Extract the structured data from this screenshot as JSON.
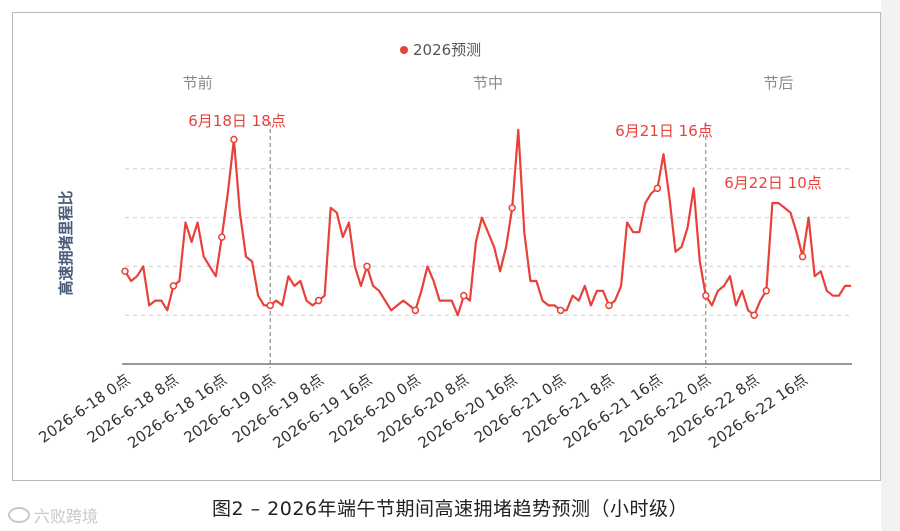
{
  "caption": "图2 – 2026年端午节期间高速拥堵趋势预测（小时级）",
  "watermark": {
    "text": "六败跨境",
    "icon": "logo-icon"
  },
  "colors": {
    "line": "#e8413a",
    "grid": "#cfcfcf",
    "divider": "#7a7a7a",
    "axis": "#333333",
    "section_label": "#8a8a8a",
    "annotation": "#e8413a",
    "ylabel": "#4a5a78"
  },
  "chart_data": {
    "type": "line",
    "title": "",
    "xlabel": "",
    "ylabel": "高速拥堵里程比",
    "legend": {
      "position": "top-center",
      "entries": [
        "2026预测"
      ]
    },
    "grid": {
      "horizontal": true,
      "style": "dashed"
    },
    "ylim": [
      0,
      5
    ],
    "sections": [
      "节前",
      "节中",
      "节后"
    ],
    "dividers_at": [
      "2026-6-19 0点",
      "2026-6-22 0点"
    ],
    "annotations": [
      {
        "label": "6月18日 18点",
        "x": "2026-6-18 18点"
      },
      {
        "label": "6月21日 16点",
        "x": "2026-6-21 16点"
      },
      {
        "label": "6月22日 10点",
        "x": "2026-6-22 10点"
      }
    ],
    "tick_labels": [
      "2026-6-18 0点",
      "2026-6-18 8点",
      "2026-6-18 16点",
      "2026-6-19 0点",
      "2026-6-19 8点",
      "2026-6-19 16点",
      "2026-6-20 0点",
      "2026-6-20 8点",
      "2026-6-20 16点",
      "2026-6-21 0点",
      "2026-6-21 8点",
      "2026-6-21 16点",
      "2026-6-22 0点",
      "2026-6-22 8点",
      "2026-6-22 16点"
    ],
    "x_unit": "hour",
    "x_start": "2026-6-18 0点",
    "series": [
      {
        "name": "2026预测",
        "values": [
          1.9,
          1.7,
          1.8,
          2.0,
          1.2,
          1.3,
          1.3,
          1.1,
          1.6,
          1.7,
          2.9,
          2.5,
          2.9,
          2.2,
          2.0,
          1.8,
          2.6,
          3.5,
          4.6,
          3.1,
          2.2,
          2.1,
          1.4,
          1.2,
          1.2,
          1.3,
          1.2,
          1.8,
          1.6,
          1.7,
          1.3,
          1.2,
          1.3,
          1.4,
          3.2,
          3.1,
          2.6,
          2.9,
          2.0,
          1.6,
          2.0,
          1.6,
          1.5,
          1.3,
          1.1,
          1.2,
          1.3,
          1.2,
          1.1,
          1.5,
          2.0,
          1.7,
          1.3,
          1.3,
          1.3,
          1.0,
          1.4,
          1.3,
          2.5,
          3.0,
          2.7,
          2.4,
          1.9,
          2.4,
          3.2,
          4.8,
          2.7,
          1.7,
          1.7,
          1.3,
          1.2,
          1.2,
          1.1,
          1.1,
          1.4,
          1.3,
          1.6,
          1.2,
          1.5,
          1.5,
          1.2,
          1.3,
          1.6,
          2.9,
          2.7,
          2.7,
          3.3,
          3.5,
          3.6,
          4.3,
          3.4,
          2.3,
          2.4,
          2.8,
          3.6,
          2.1,
          1.4,
          1.2,
          1.5,
          1.6,
          1.8,
          1.2,
          1.5,
          1.1,
          1.0,
          1.3,
          1.5,
          3.3,
          3.3,
          3.2,
          3.1,
          2.7,
          2.2,
          3.0,
          1.8,
          1.9,
          1.5,
          1.4,
          1.4,
          1.6,
          1.6
        ],
        "markers_at": [
          "2026-6-18 0点",
          "2026-6-18 8点",
          "2026-6-18 16点",
          "2026-6-19 0点",
          "2026-6-19 8点",
          "2026-6-19 16点",
          "2026-6-20 0点",
          "2026-6-20 8点",
          "2026-6-20 16点",
          "2026-6-21 0点",
          "2026-6-21 8点",
          "2026-6-21 16点",
          "2026-6-22 0点",
          "2026-6-22 8点",
          "2026-6-22 16点"
        ]
      }
    ]
  }
}
